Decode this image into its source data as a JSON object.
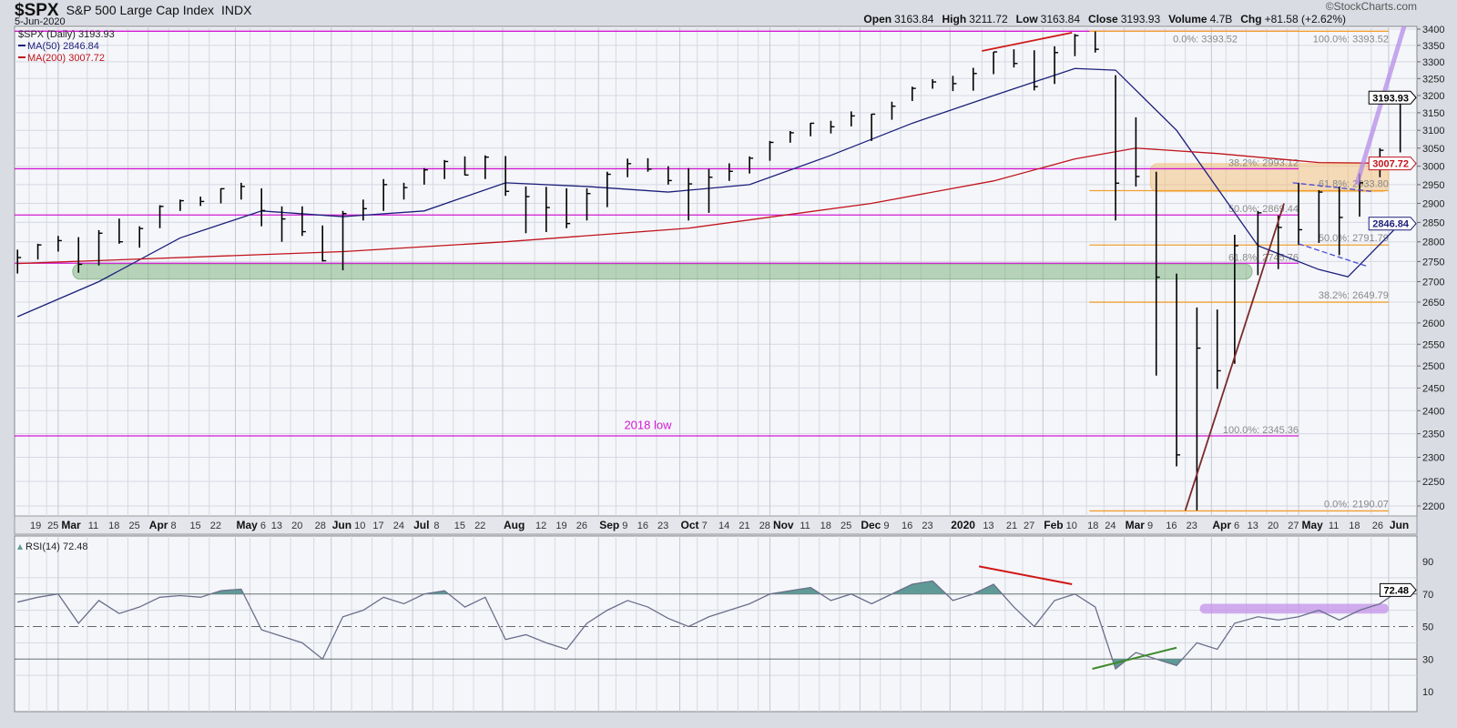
{
  "header": {
    "symbol": "$SPX",
    "name": "S&P 500 Large Cap Index",
    "exchange": "INDX",
    "date": "5-Jun-2020",
    "brand": "©StockCharts.com",
    "ohlc": [
      {
        "key": "Open",
        "value": "3163.84"
      },
      {
        "key": "High",
        "value": "3211.72"
      },
      {
        "key": "Low",
        "value": "3163.84"
      },
      {
        "key": "Close",
        "value": "3193.93"
      },
      {
        "key": "Volume",
        "value": "4.7B"
      },
      {
        "key": "Chg",
        "value": "+81.58 (+2.62%)"
      }
    ]
  },
  "legend": {
    "price": "$SPX (Daily) 3193.93",
    "ma50": "MA(50) 2846.84",
    "ma200": "MA(200) 3007.72",
    "rsi": "RSI(14) 72.48"
  },
  "colors": {
    "ma50": "#1c1f7a",
    "ma200": "#c0141c",
    "magenta": "#d21ad2",
    "orange": "#f0a030",
    "rsi_fill": "#5f9a96",
    "background": "#f5f6fa",
    "grid": "#d6d9e2"
  },
  "chart_data": [
    {
      "type": "ohlc",
      "scale": "log",
      "ylim": [
        2190,
        3400
      ],
      "y_ticks": [
        2200,
        2250,
        2300,
        2350,
        2400,
        2450,
        2500,
        2550,
        2600,
        2650,
        2700,
        2750,
        2800,
        2850,
        2900,
        2950,
        3000,
        3050,
        3100,
        3150,
        3200,
        3250,
        3300,
        3350,
        3400
      ],
      "x_tick_labels": [
        "19",
        "25",
        "Mar",
        "11",
        "18",
        "25",
        "Apr",
        "8",
        "15",
        "22",
        "May",
        "6",
        "13",
        "20",
        "28",
        "Jun",
        "10",
        "17",
        "24",
        "Jul",
        "8",
        "15",
        "22",
        "Aug",
        "12",
        "19",
        "26",
        "Sep",
        "9",
        "16",
        "23",
        "Oct",
        "7",
        "14",
        "21",
        "28",
        "Nov",
        "11",
        "18",
        "25",
        "Dec",
        "9",
        "16",
        "23",
        "2020",
        "13",
        "21",
        "27",
        "Feb",
        "10",
        "18",
        "24",
        "Mar",
        "9",
        "16",
        "23",
        "Apr",
        "6",
        "13",
        "20",
        "27",
        "May",
        "11",
        "18",
        "26",
        "Jun"
      ],
      "bars_columns": [
        "date",
        "high",
        "low",
        "close"
      ],
      "bars": [
        [
          "2019-02-15",
          2780,
          2720,
          2760
        ],
        [
          "2019-02-22",
          2795,
          2755,
          2792
        ],
        [
          "2019-03-01",
          2815,
          2775,
          2803
        ],
        [
          "2019-03-08",
          2812,
          2722,
          2743
        ],
        [
          "2019-03-15",
          2830,
          2740,
          2822
        ],
        [
          "2019-03-22",
          2860,
          2795,
          2800
        ],
        [
          "2019-03-29",
          2840,
          2785,
          2834
        ],
        [
          "2019-04-05",
          2895,
          2835,
          2892
        ],
        [
          "2019-04-12",
          2910,
          2880,
          2907
        ],
        [
          "2019-04-19",
          2918,
          2893,
          2905
        ],
        [
          "2019-04-26",
          2940,
          2900,
          2939
        ],
        [
          "2019-05-03",
          2955,
          2910,
          2945
        ],
        [
          "2019-05-10",
          2940,
          2840,
          2881
        ],
        [
          "2019-05-17",
          2892,
          2800,
          2859
        ],
        [
          "2019-05-24",
          2892,
          2815,
          2826
        ],
        [
          "2019-05-31",
          2842,
          2750,
          2752
        ],
        [
          "2019-06-07",
          2880,
          2728,
          2873
        ],
        [
          "2019-06-14",
          2910,
          2855,
          2886
        ],
        [
          "2019-06-21",
          2965,
          2880,
          2950
        ],
        [
          "2019-06-28",
          2955,
          2910,
          2942
        ],
        [
          "2019-07-05",
          2995,
          2950,
          2990
        ],
        [
          "2019-07-12",
          3017,
          2965,
          3013
        ],
        [
          "2019-07-19",
          3027,
          2975,
          2976
        ],
        [
          "2019-07-26",
          3030,
          2965,
          3025
        ],
        [
          "2019-08-02",
          3028,
          2920,
          2932
        ],
        [
          "2019-08-09",
          2945,
          2822,
          2918
        ],
        [
          "2019-08-16",
          2944,
          2825,
          2889
        ],
        [
          "2019-08-23",
          2940,
          2835,
          2847
        ],
        [
          "2019-08-30",
          2940,
          2855,
          2926
        ],
        [
          "2019-09-06",
          2985,
          2890,
          2978
        ],
        [
          "2019-09-13",
          3021,
          2970,
          3007
        ],
        [
          "2019-09-20",
          3022,
          2985,
          2992
        ],
        [
          "2019-09-27",
          3000,
          2950,
          2961
        ],
        [
          "2019-10-04",
          2995,
          2855,
          2952
        ],
        [
          "2019-10-11",
          2993,
          2875,
          2970
        ],
        [
          "2019-10-18",
          3008,
          2960,
          2986
        ],
        [
          "2019-10-25",
          3027,
          2980,
          3022
        ],
        [
          "2019-11-01",
          3070,
          3015,
          3066
        ],
        [
          "2019-11-08",
          3098,
          3065,
          3093
        ],
        [
          "2019-11-15",
          3121,
          3083,
          3120
        ],
        [
          "2019-11-22",
          3127,
          3091,
          3110
        ],
        [
          "2019-11-29",
          3154,
          3111,
          3141
        ],
        [
          "2019-12-06",
          3147,
          3070,
          3146
        ],
        [
          "2019-12-13",
          3182,
          3130,
          3169
        ],
        [
          "2019-12-20",
          3226,
          3184,
          3221
        ],
        [
          "2019-12-27",
          3248,
          3220,
          3240
        ],
        [
          "2020-01-03",
          3258,
          3213,
          3235
        ],
        [
          "2020-01-10",
          3282,
          3214,
          3265
        ],
        [
          "2020-01-17",
          3330,
          3263,
          3330
        ],
        [
          "2020-01-24",
          3338,
          3283,
          3295
        ],
        [
          "2020-01-31",
          3335,
          3215,
          3226
        ],
        [
          "2020-02-07",
          3347,
          3234,
          3328
        ],
        [
          "2020-02-14",
          3385,
          3317,
          3380
        ],
        [
          "2020-02-21",
          3393,
          3328,
          3338
        ],
        [
          "2020-02-28",
          3260,
          2855,
          2954
        ],
        [
          "2020-03-06",
          3137,
          2945,
          2972
        ],
        [
          "2020-03-13",
          2985,
          2478,
          2711
        ],
        [
          "2020-03-20",
          2720,
          2281,
          2305
        ],
        [
          "2020-03-27",
          2637,
          2191,
          2541
        ],
        [
          "2020-04-03",
          2632,
          2448,
          2489
        ],
        [
          "2020-04-09",
          2818,
          2505,
          2790
        ],
        [
          "2020-04-17",
          2880,
          2716,
          2875
        ],
        [
          "2020-04-24",
          2868,
          2731,
          2837
        ],
        [
          "2020-05-01",
          2955,
          2792,
          2831
        ],
        [
          "2020-05-08",
          2935,
          2797,
          2930
        ],
        [
          "2020-05-15",
          2945,
          2766,
          2863
        ],
        [
          "2020-05-22",
          2980,
          2865,
          2955
        ],
        [
          "2020-05-29",
          3050,
          2970,
          3044
        ],
        [
          "2020-06-05",
          3212,
          3038,
          3194
        ]
      ],
      "series": [
        {
          "name": "MA(50)",
          "last": 2846.84,
          "points": [
            [
              "2019-02-15",
              2615
            ],
            [
              "2019-03-15",
              2700
            ],
            [
              "2019-04-12",
              2810
            ],
            [
              "2019-05-10",
              2880
            ],
            [
              "2019-06-07",
              2865
            ],
            [
              "2019-07-05",
              2880
            ],
            [
              "2019-08-02",
              2955
            ],
            [
              "2019-08-30",
              2945
            ],
            [
              "2019-09-27",
              2930
            ],
            [
              "2019-10-25",
              2950
            ],
            [
              "2019-11-22",
              3030
            ],
            [
              "2019-12-20",
              3120
            ],
            [
              "2020-01-17",
              3200
            ],
            [
              "2020-02-14",
              3280
            ],
            [
              "2020-02-28",
              3275
            ],
            [
              "2020-03-20",
              3100
            ],
            [
              "2020-04-17",
              2790
            ],
            [
              "2020-05-08",
              2730
            ],
            [
              "2020-05-18",
              2712
            ],
            [
              "2020-06-05",
              2847
            ]
          ]
        },
        {
          "name": "MA(200)",
          "last": 3007.72,
          "points": [
            [
              "2019-02-15",
              2745
            ],
            [
              "2019-06-07",
              2775
            ],
            [
              "2019-08-02",
              2800
            ],
            [
              "2019-10-04",
              2835
            ],
            [
              "2019-12-06",
              2900
            ],
            [
              "2020-01-17",
              2960
            ],
            [
              "2020-02-14",
              3020
            ],
            [
              "2020-03-06",
              3050
            ],
            [
              "2020-04-03",
              3035
            ],
            [
              "2020-05-08",
              3010
            ],
            [
              "2020-06-05",
              3008
            ]
          ]
        }
      ],
      "last_price": "3193.93",
      "last_ma200": "3007.72",
      "last_ma50": "2846.84",
      "annotations": {
        "fib_magenta": [
          {
            "price": 3393.52,
            "label": "0.0%: 3393.52"
          },
          {
            "price": 2993.12,
            "label": "38.2%: 2993.12"
          },
          {
            "price": 2869.44,
            "label": "50.0%: 2869.44"
          },
          {
            "price": 2745.76,
            "label": "61.8%: 2745.76"
          },
          {
            "price": 2345.36,
            "label": "100.0%: 2345.36"
          }
        ],
        "fib_orange": [
          {
            "price": 3393.52,
            "label": "100.0%: 3393.52"
          },
          {
            "price": 2933.8,
            "label": "61.8%: 2933.80"
          },
          {
            "price": 2791.79,
            "label": "50.0%: 2791.79"
          },
          {
            "price": 2649.79,
            "label": "38.2%: 2649.79"
          },
          {
            "price": 2190.07,
            "label": "0.0%: 2190.07"
          }
        ],
        "text_note": {
          "label": "2018 low",
          "date": "2019-09-20",
          "price": 2360
        },
        "zones": [
          {
            "name": "support",
            "from": "2019-03-06",
            "to": "2020-04-15",
            "low": 2706,
            "high": 2744,
            "color": "#6aa86a"
          },
          {
            "name": "resistance",
            "from": "2020-03-11",
            "to": "2020-06-01",
            "low": 2931,
            "high": 3007,
            "color": "#f3b766"
          }
        ],
        "trendlines": [
          {
            "color": "#d01818",
            "from": [
              "2020-01-13",
              3333
            ],
            "to": [
              "2020-02-13",
              3389
            ]
          },
          {
            "color": "#7a2a2a",
            "from": [
              "2020-03-23",
              2191
            ],
            "to": [
              "2020-04-26",
              2900
            ]
          },
          {
            "color": "#b48ce8",
            "from": [
              "2020-05-21",
              2950
            ],
            "to": [
              "2020-06-09",
              3490
            ],
            "thick": true
          },
          {
            "color": "#4a4ad8",
            "from": [
              "2020-04-29",
              2955
            ],
            "to": [
              "2020-05-26",
              2932
            ],
            "dashed": true
          },
          {
            "color": "#4a4ad8",
            "from": [
              "2020-05-01",
              2795
            ],
            "to": [
              "2020-05-25",
              2737
            ],
            "dashed": true
          }
        ]
      }
    },
    {
      "type": "line",
      "name": "RSI(14)",
      "ylim": [
        0,
        100
      ],
      "y_ticks": [
        10,
        30,
        50,
        70,
        90
      ],
      "levels": [
        30,
        50,
        70
      ],
      "last": "72.48",
      "points": [
        [
          "2019-02-15",
          65
        ],
        [
          "2019-02-22",
          68
        ],
        [
          "2019-03-01",
          70
        ],
        [
          "2019-03-08",
          52
        ],
        [
          "2019-03-15",
          66
        ],
        [
          "2019-03-22",
          58
        ],
        [
          "2019-03-29",
          62
        ],
        [
          "2019-04-05",
          68
        ],
        [
          "2019-04-12",
          69
        ],
        [
          "2019-04-19",
          68
        ],
        [
          "2019-04-26",
          72
        ],
        [
          "2019-05-03",
          73
        ],
        [
          "2019-05-10",
          48
        ],
        [
          "2019-05-17",
          44
        ],
        [
          "2019-05-24",
          40
        ],
        [
          "2019-05-31",
          30
        ],
        [
          "2019-06-07",
          56
        ],
        [
          "2019-06-14",
          60
        ],
        [
          "2019-06-21",
          68
        ],
        [
          "2019-06-28",
          64
        ],
        [
          "2019-07-05",
          70
        ],
        [
          "2019-07-12",
          72
        ],
        [
          "2019-07-19",
          62
        ],
        [
          "2019-07-26",
          68
        ],
        [
          "2019-08-02",
          42
        ],
        [
          "2019-08-09",
          45
        ],
        [
          "2019-08-16",
          40
        ],
        [
          "2019-08-23",
          36
        ],
        [
          "2019-08-30",
          52
        ],
        [
          "2019-09-06",
          60
        ],
        [
          "2019-09-13",
          66
        ],
        [
          "2019-09-20",
          62
        ],
        [
          "2019-09-27",
          55
        ],
        [
          "2019-10-04",
          50
        ],
        [
          "2019-10-11",
          56
        ],
        [
          "2019-10-18",
          60
        ],
        [
          "2019-10-25",
          64
        ],
        [
          "2019-11-01",
          70
        ],
        [
          "2019-11-08",
          72
        ],
        [
          "2019-11-15",
          74
        ],
        [
          "2019-11-22",
          66
        ],
        [
          "2019-11-29",
          70
        ],
        [
          "2019-12-06",
          64
        ],
        [
          "2019-12-13",
          70
        ],
        [
          "2019-12-20",
          76
        ],
        [
          "2019-12-27",
          78
        ],
        [
          "2020-01-03",
          66
        ],
        [
          "2020-01-10",
          70
        ],
        [
          "2020-01-17",
          76
        ],
        [
          "2020-01-24",
          62
        ],
        [
          "2020-01-31",
          50
        ],
        [
          "2020-02-07",
          66
        ],
        [
          "2020-02-14",
          70
        ],
        [
          "2020-02-21",
          62
        ],
        [
          "2020-02-28",
          24
        ],
        [
          "2020-03-06",
          34
        ],
        [
          "2020-03-13",
          30
        ],
        [
          "2020-03-20",
          26
        ],
        [
          "2020-03-27",
          40
        ],
        [
          "2020-04-03",
          36
        ],
        [
          "2020-04-09",
          52
        ],
        [
          "2020-04-17",
          56
        ],
        [
          "2020-04-24",
          54
        ],
        [
          "2020-05-01",
          56
        ],
        [
          "2020-05-08",
          60
        ],
        [
          "2020-05-15",
          54
        ],
        [
          "2020-05-22",
          60
        ],
        [
          "2020-05-29",
          64
        ],
        [
          "2020-06-05",
          72.48
        ]
      ],
      "annotations": {
        "trendlines": [
          {
            "color": "#d01818",
            "from": [
              "2020-01-12",
              87
            ],
            "to": [
              "2020-02-13",
              76
            ]
          },
          {
            "color": "#3c8a2a",
            "from": [
              "2020-02-20",
              24
            ],
            "to": [
              "2020-03-20",
              37
            ]
          }
        ],
        "band": {
          "from": "2020-03-28",
          "to": "2020-06-01",
          "low": 58,
          "high": 64,
          "color": "#c08ce8"
        }
      }
    }
  ]
}
